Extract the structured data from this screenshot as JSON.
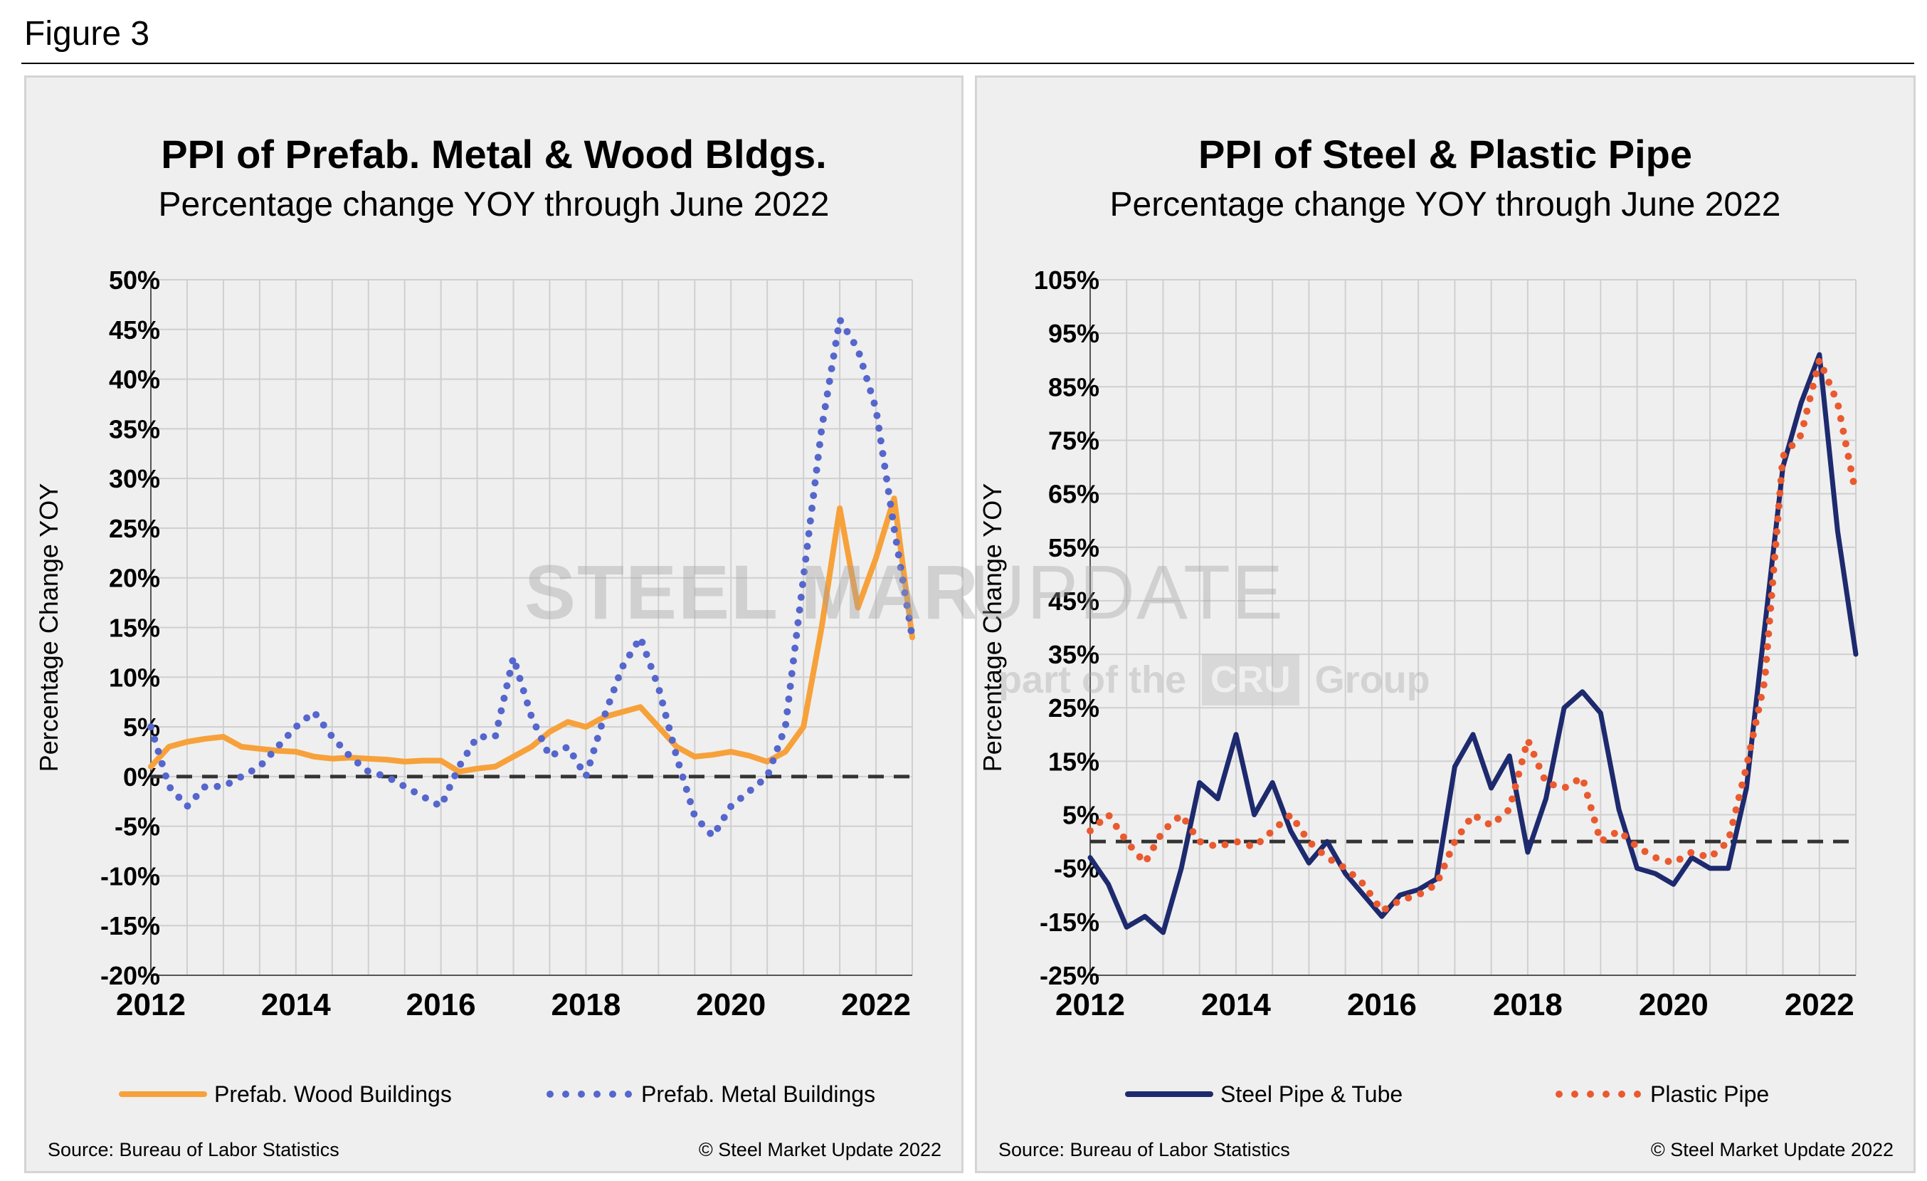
{
  "figure_label": "Figure 3",
  "watermark": {
    "brand_bold": "STEEL MARKET",
    "brand_light": "UPDATE",
    "part_of": "part of the",
    "cru": "CRU",
    "group": "Group"
  },
  "colors": {
    "wood": "#f7a13b",
    "metal": "#5566cc",
    "steel": "#1e2a6e",
    "plastic": "#ea5a2f",
    "grid": "#cfcfcf",
    "zero_line": "#333333"
  },
  "chart_data": [
    {
      "type": "line",
      "title": "PPI of Prefab. Metal & Wood Bldgs.",
      "subtitle": "Percentage change YOY through June 2022",
      "xlabel": "",
      "ylabel": "Percentage Change YOY",
      "ylim": [
        -20,
        50
      ],
      "yticks": [
        "50%",
        "45%",
        "40%",
        "35%",
        "30%",
        "25%",
        "20%",
        "15%",
        "10%",
        "5%",
        "0%",
        "-5%",
        "-10%",
        "-15%",
        "-20%"
      ],
      "xlim": [
        2012,
        2022.5
      ],
      "xticks": [
        "2012",
        "2014",
        "2016",
        "2018",
        "2020",
        "2022"
      ],
      "grid": true,
      "legend_position": "bottom",
      "source": "Source: Bureau of Labor Statistics",
      "copyright": "© Steel Market Update 2022",
      "series": [
        {
          "name": "Prefab. Wood Buildings",
          "style": "solid",
          "color": "#f7a13b",
          "x": [
            2012.0,
            2012.25,
            2012.5,
            2012.75,
            2013.0,
            2013.25,
            2013.5,
            2013.75,
            2014.0,
            2014.25,
            2014.5,
            2014.75,
            2015.0,
            2015.25,
            2015.5,
            2015.75,
            2016.0,
            2016.25,
            2016.5,
            2016.75,
            2017.0,
            2017.25,
            2017.5,
            2017.75,
            2018.0,
            2018.25,
            2018.5,
            2018.75,
            2019.0,
            2019.25,
            2019.5,
            2019.75,
            2020.0,
            2020.25,
            2020.5,
            2020.75,
            2021.0,
            2021.25,
            2021.5,
            2021.75,
            2022.0,
            2022.25,
            2022.5
          ],
          "y": [
            1,
            3,
            3.5,
            3.8,
            4,
            3,
            2.8,
            2.6,
            2.5,
            2,
            1.8,
            1.9,
            1.8,
            1.7,
            1.5,
            1.6,
            1.6,
            0.5,
            0.8,
            1.0,
            2,
            3,
            4.5,
            5.5,
            5,
            6,
            6.5,
            7,
            5,
            3,
            2,
            2.2,
            2.5,
            2.1,
            1.5,
            2.5,
            5,
            15,
            27,
            17,
            22,
            28,
            14
          ]
        },
        {
          "name": "Prefab. Metal Buildings",
          "style": "dotted",
          "color": "#5566cc",
          "x": [
            2012.0,
            2012.25,
            2012.5,
            2012.75,
            2013.0,
            2013.25,
            2013.5,
            2013.75,
            2014.0,
            2014.25,
            2014.5,
            2014.75,
            2015.0,
            2015.25,
            2015.5,
            2015.75,
            2016.0,
            2016.25,
            2016.5,
            2016.75,
            2017.0,
            2017.25,
            2017.5,
            2017.75,
            2018.0,
            2018.25,
            2018.5,
            2018.75,
            2019.0,
            2019.25,
            2019.5,
            2019.75,
            2020.0,
            2020.25,
            2020.5,
            2020.75,
            2021.0,
            2021.25,
            2021.5,
            2021.75,
            2022.0,
            2022.25,
            2022.5
          ],
          "y": [
            5,
            -1,
            -3,
            -1,
            -1,
            0,
            1,
            3,
            5,
            6.5,
            4,
            2,
            0.5,
            0,
            -1,
            -2,
            -3,
            1,
            4,
            4,
            12,
            6,
            2,
            3,
            0,
            6,
            11,
            14,
            9,
            2,
            -4,
            -6,
            -3,
            -1.5,
            0,
            5,
            20,
            35,
            46,
            43,
            37,
            25,
            14
          ]
        }
      ]
    },
    {
      "type": "line",
      "title": "PPI of Steel & Plastic Pipe",
      "subtitle": "Percentage change YOY through June 2022",
      "xlabel": "",
      "ylabel": "Percentage Change YOY",
      "ylim": [
        -25,
        105
      ],
      "yticks": [
        "105%",
        "95%",
        "85%",
        "75%",
        "65%",
        "55%",
        "45%",
        "35%",
        "25%",
        "15%",
        "5%",
        "-5%",
        "-15%",
        "-25%"
      ],
      "xlim": [
        2012,
        2022.5
      ],
      "xticks": [
        "2012",
        "2014",
        "2016",
        "2018",
        "2020",
        "2022"
      ],
      "grid": true,
      "legend_position": "bottom",
      "source": "Source: Bureau of Labor Statistics",
      "copyright": "© Steel Market Update 2022",
      "series": [
        {
          "name": "Steel Pipe & Tube",
          "style": "solid",
          "color": "#1e2a6e",
          "x": [
            2012.0,
            2012.25,
            2012.5,
            2012.75,
            2013.0,
            2013.25,
            2013.5,
            2013.75,
            2014.0,
            2014.25,
            2014.5,
            2014.75,
            2015.0,
            2015.25,
            2015.5,
            2015.75,
            2016.0,
            2016.25,
            2016.5,
            2016.75,
            2017.0,
            2017.25,
            2017.5,
            2017.75,
            2018.0,
            2018.25,
            2018.5,
            2018.75,
            2019.0,
            2019.25,
            2019.5,
            2019.75,
            2020.0,
            2020.25,
            2020.5,
            2020.75,
            2021.0,
            2021.25,
            2021.5,
            2021.75,
            2022.0,
            2022.25,
            2022.5
          ],
          "y": [
            -3,
            -8,
            -16,
            -14,
            -17,
            -5,
            11,
            8,
            20,
            5,
            11,
            2,
            -4,
            0,
            -6,
            -10,
            -14,
            -10,
            -9,
            -7,
            14,
            20,
            10,
            16,
            -2,
            8,
            25,
            28,
            24,
            6,
            -5,
            -6,
            -8,
            -3,
            -5,
            -5,
            10,
            40,
            70,
            82,
            91,
            58,
            35
          ]
        },
        {
          "name": "Plastic Pipe",
          "style": "dotted",
          "color": "#ea5a2f",
          "x": [
            2012.0,
            2012.25,
            2012.5,
            2012.75,
            2013.0,
            2013.25,
            2013.5,
            2013.75,
            2014.0,
            2014.25,
            2014.5,
            2014.75,
            2015.0,
            2015.25,
            2015.5,
            2015.75,
            2016.0,
            2016.25,
            2016.5,
            2016.75,
            2017.0,
            2017.25,
            2017.5,
            2017.75,
            2018.0,
            2018.25,
            2018.5,
            2018.75,
            2019.0,
            2019.25,
            2019.5,
            2019.75,
            2020.0,
            2020.25,
            2020.5,
            2020.75,
            2021.0,
            2021.25,
            2021.5,
            2021.75,
            2022.0,
            2022.25,
            2022.5
          ],
          "y": [
            2,
            5,
            0,
            -4,
            2,
            5,
            0,
            -1,
            0,
            -1,
            2,
            5,
            0,
            -3,
            -5,
            -8,
            -13,
            -11,
            -10,
            -8,
            0,
            5,
            3,
            6,
            19,
            11,
            10,
            12,
            0,
            2,
            -1,
            -3,
            -4,
            -2,
            -3,
            0,
            14,
            30,
            72,
            76,
            90,
            82,
            65
          ]
        }
      ]
    }
  ]
}
